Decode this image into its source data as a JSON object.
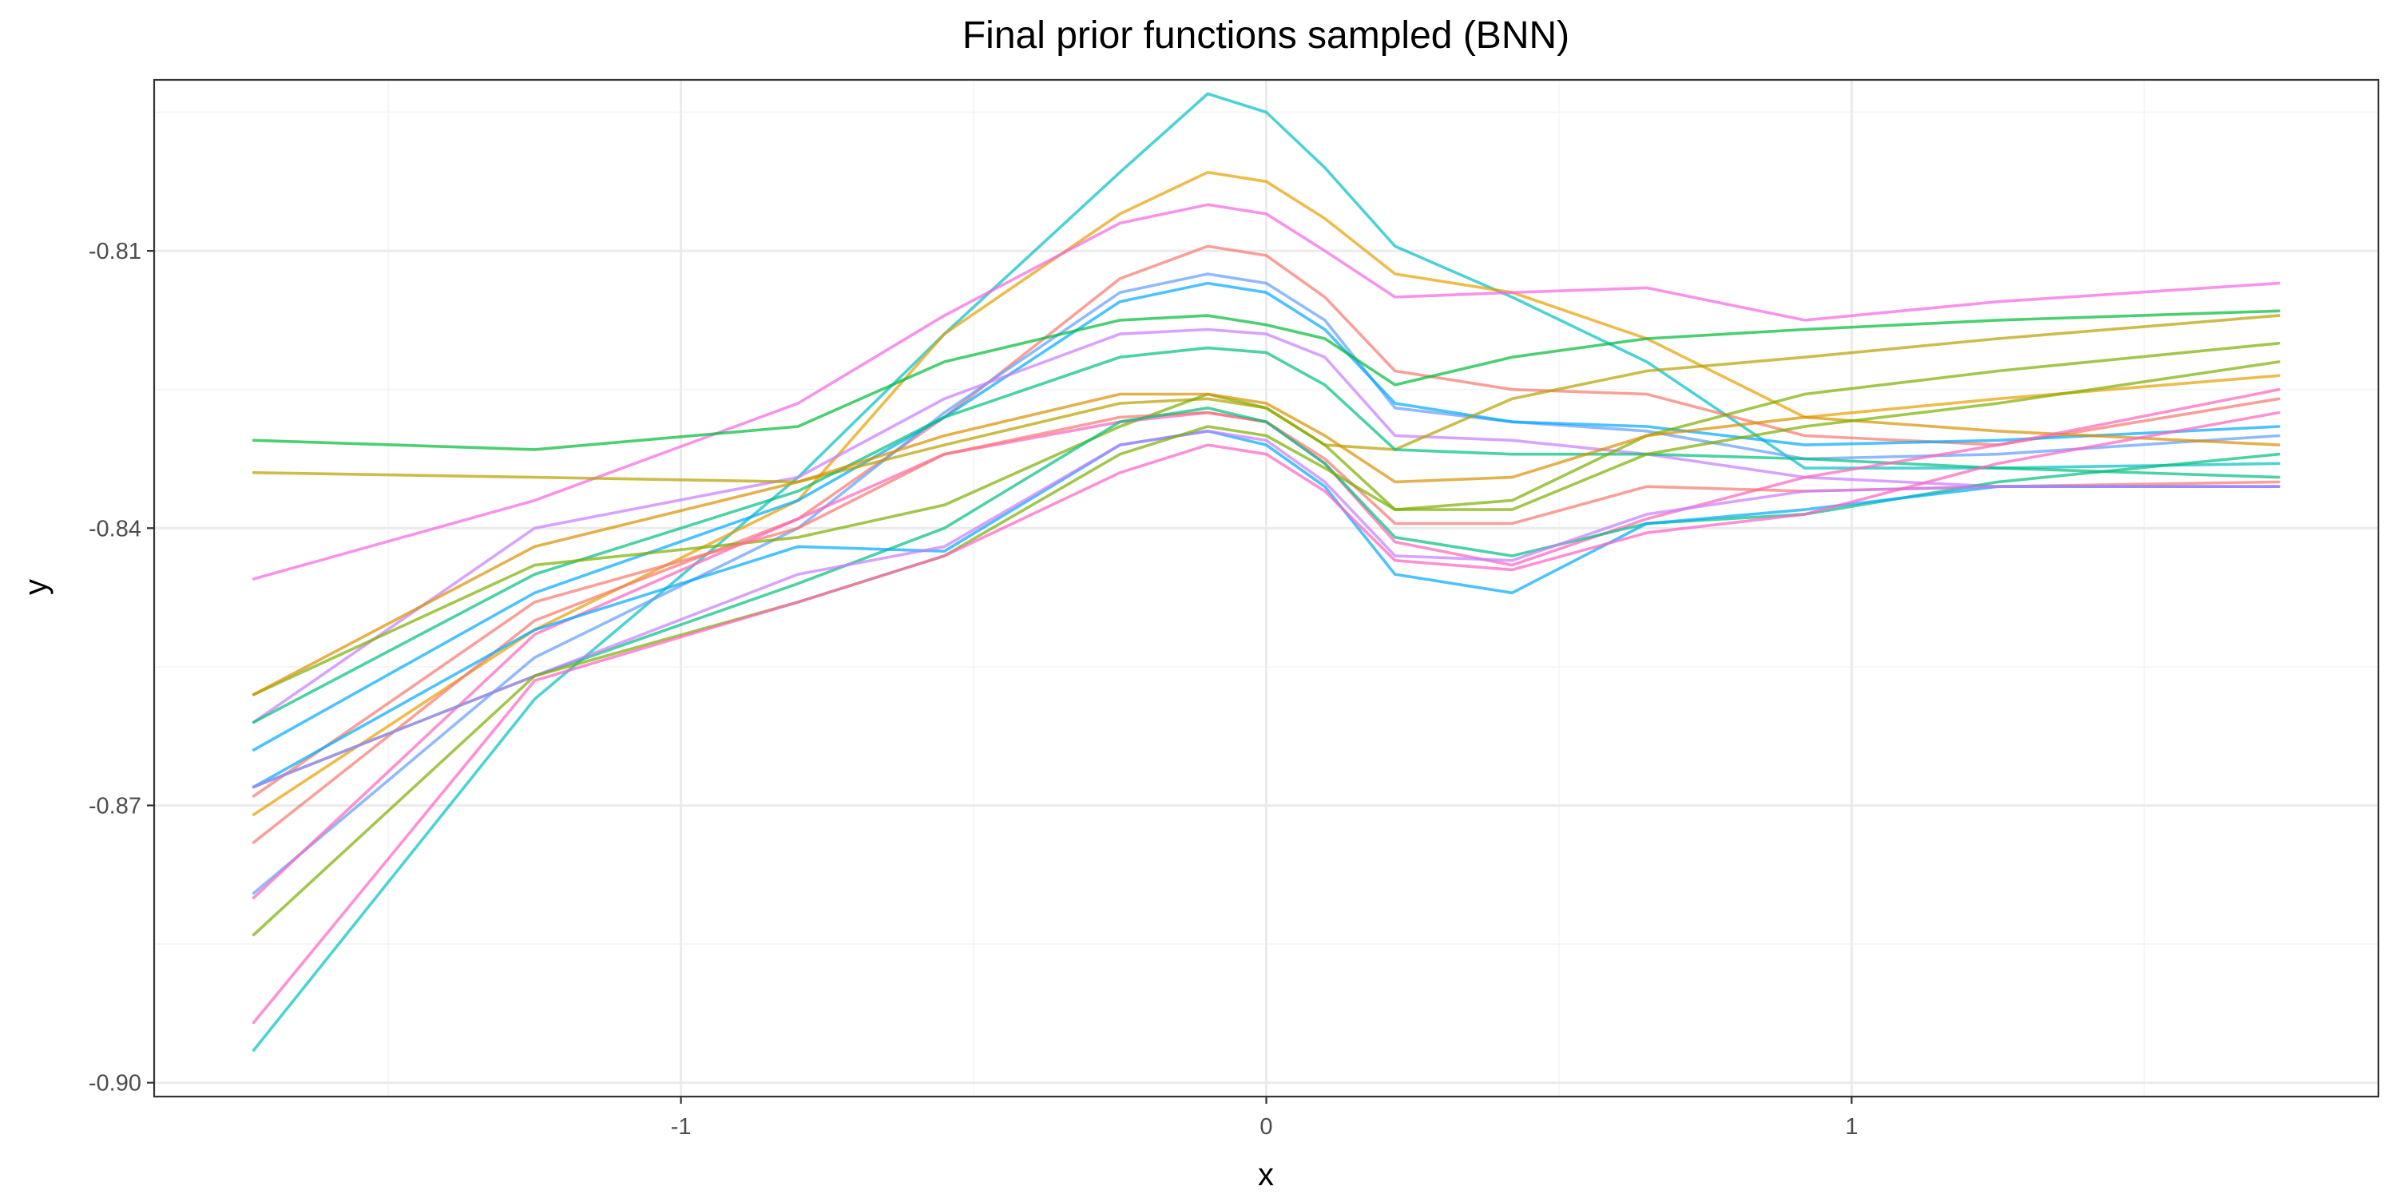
{
  "chart_data": {
    "type": "line",
    "title": "Final prior functions sampled (BNN)",
    "xlabel": "x",
    "ylabel": "y",
    "xlim": [
      -1.9,
      1.9
    ],
    "ylim": [
      -0.9015,
      -0.7915
    ],
    "x_ticks": [
      -1,
      0,
      1
    ],
    "x_tick_labels": [
      "-1",
      "0",
      "1"
    ],
    "y_ticks": [
      -0.9,
      -0.87,
      -0.84,
      -0.81
    ],
    "y_tick_labels": [
      "-0.90",
      "-0.87",
      "-0.84",
      "-0.81"
    ],
    "grid": true,
    "legend": "none",
    "x": [
      -1.73,
      -1.25,
      -0.8,
      -0.55,
      -0.25,
      -0.1,
      0.0,
      0.1,
      0.22,
      0.42,
      0.65,
      0.92,
      1.25,
      1.73
    ],
    "series": [
      {
        "color": "#00BFC4",
        "values": [
          -0.8965,
          -0.8585,
          -0.8345,
          -0.819,
          -0.8015,
          -0.793,
          -0.795,
          -0.801,
          -0.8095,
          -0.815,
          -0.822,
          -0.8335,
          -0.8335,
          -0.833
        ]
      },
      {
        "color": "#E69F00",
        "values": [
          -0.871,
          -0.851,
          -0.837,
          -0.819,
          -0.806,
          -0.8015,
          -0.8025,
          -0.8065,
          -0.8125,
          -0.8145,
          -0.8195,
          -0.828,
          -0.826,
          -0.8235
        ]
      },
      {
        "color": "#F564E3",
        "values": [
          -0.8455,
          -0.837,
          -0.8265,
          -0.817,
          -0.807,
          -0.805,
          -0.806,
          -0.81,
          -0.815,
          -0.8145,
          -0.814,
          -0.8175,
          -0.8155,
          -0.8135
        ]
      },
      {
        "color": "#F8766D",
        "values": [
          -0.874,
          -0.85,
          -0.839,
          -0.828,
          -0.813,
          -0.8095,
          -0.8105,
          -0.815,
          -0.823,
          -0.825,
          -0.8255,
          -0.83,
          -0.831,
          -0.826
        ]
      },
      {
        "color": "#619CFF",
        "values": [
          -0.8795,
          -0.854,
          -0.84,
          -0.8275,
          -0.8145,
          -0.8125,
          -0.8135,
          -0.8175,
          -0.827,
          -0.8285,
          -0.8295,
          -0.8325,
          -0.832,
          -0.83
        ]
      },
      {
        "color": "#00A9FF",
        "values": [
          -0.864,
          -0.847,
          -0.837,
          -0.828,
          -0.8155,
          -0.8135,
          -0.8145,
          -0.8185,
          -0.8265,
          -0.8285,
          -0.829,
          -0.831,
          -0.8305,
          -0.829
        ]
      },
      {
        "color": "#00BA38",
        "values": [
          -0.8305,
          -0.8315,
          -0.829,
          -0.822,
          -0.8175,
          -0.817,
          -0.818,
          -0.8195,
          -0.8245,
          -0.8215,
          -0.8195,
          -0.8185,
          -0.8175,
          -0.8165
        ]
      },
      {
        "color": "#C77CFF",
        "values": [
          -0.861,
          -0.84,
          -0.8345,
          -0.826,
          -0.819,
          -0.8185,
          -0.819,
          -0.8215,
          -0.83,
          -0.8305,
          -0.832,
          -0.8345,
          -0.8355,
          -0.8355
        ]
      },
      {
        "color": "#B79F00",
        "values": [
          -0.834,
          -0.8345,
          -0.835,
          -0.831,
          -0.8265,
          -0.826,
          -0.827,
          -0.831,
          -0.8315,
          -0.826,
          -0.823,
          -0.8215,
          -0.8195,
          -0.817
        ]
      },
      {
        "color": "#00BF7D",
        "values": [
          -0.861,
          -0.845,
          -0.836,
          -0.828,
          -0.8215,
          -0.8205,
          -0.821,
          -0.8245,
          -0.8315,
          -0.832,
          -0.832,
          -0.8325,
          -0.8335,
          -0.8345
        ]
      },
      {
        "color": "#7CAE00",
        "values": [
          -0.858,
          -0.844,
          -0.841,
          -0.8375,
          -0.829,
          -0.8255,
          -0.827,
          -0.831,
          -0.838,
          -0.837,
          -0.83,
          -0.8255,
          -0.823,
          -0.82
        ]
      },
      {
        "color": "#D89000",
        "values": [
          -0.858,
          -0.842,
          -0.835,
          -0.83,
          -0.8255,
          -0.8255,
          -0.8265,
          -0.83,
          -0.835,
          -0.8345,
          -0.83,
          -0.828,
          -0.8295,
          -0.831
        ]
      },
      {
        "color": "#FF62BC",
        "values": [
          -0.88,
          -0.8515,
          -0.839,
          -0.832,
          -0.8285,
          -0.8275,
          -0.8285,
          -0.833,
          -0.8415,
          -0.844,
          -0.839,
          -0.8345,
          -0.831,
          -0.825
        ]
      },
      {
        "color": "#F8766D",
        "values": [
          -0.869,
          -0.848,
          -0.84,
          -0.832,
          -0.828,
          -0.8275,
          -0.8285,
          -0.8325,
          -0.8395,
          -0.8395,
          -0.8355,
          -0.836,
          -0.8355,
          -0.835
        ]
      },
      {
        "color": "#00BF7D",
        "values": [
          -0.868,
          -0.856,
          -0.846,
          -0.84,
          -0.8285,
          -0.827,
          -0.8285,
          -0.833,
          -0.841,
          -0.843,
          -0.8395,
          -0.8385,
          -0.835,
          -0.832
        ]
      },
      {
        "color": "#00A9FF",
        "values": [
          -0.868,
          -0.851,
          -0.842,
          -0.8425,
          -0.831,
          -0.8295,
          -0.831,
          -0.8355,
          -0.845,
          -0.847,
          -0.8395,
          -0.838,
          -0.8355,
          -0.8355
        ]
      },
      {
        "color": "#C77CFF",
        "values": [
          -0.868,
          -0.856,
          -0.845,
          -0.842,
          -0.831,
          -0.8295,
          -0.8305,
          -0.835,
          -0.843,
          -0.8435,
          -0.8385,
          -0.836,
          -0.8355,
          -0.8355
        ]
      },
      {
        "color": "#7CAE00",
        "values": [
          -0.884,
          -0.856,
          -0.848,
          -0.843,
          -0.832,
          -0.829,
          -0.83,
          -0.8335,
          -0.838,
          -0.838,
          -0.832,
          -0.829,
          -0.8265,
          -0.822
        ]
      },
      {
        "color": "#FF61C3",
        "values": [
          -0.8935,
          -0.8565,
          -0.848,
          -0.843,
          -0.834,
          -0.831,
          -0.832,
          -0.836,
          -0.8435,
          -0.8445,
          -0.8405,
          -0.8385,
          -0.833,
          -0.8275
        ]
      }
    ]
  }
}
